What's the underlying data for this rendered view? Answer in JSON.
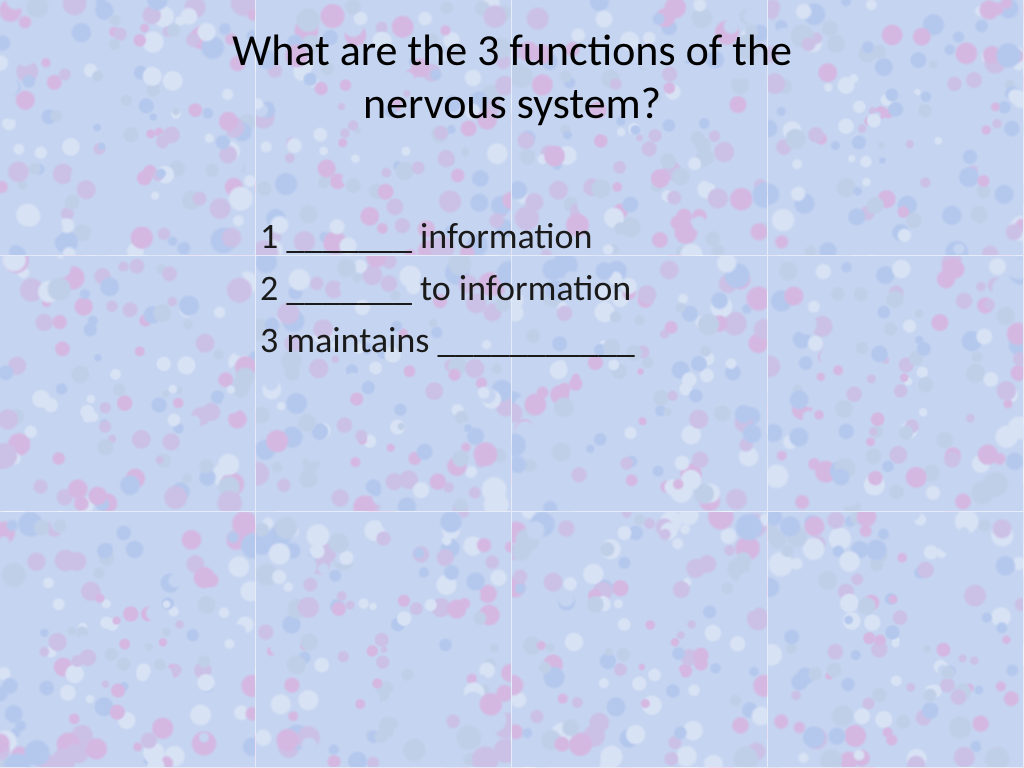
{
  "slide": {
    "title": "What are the 3 functions of the\nnervous system?",
    "items": [
      "1 _______ information",
      "2 _______ to information",
      "3 maintains ___________"
    ],
    "title_fontsize": 44,
    "body_fontsize": 36,
    "text_color": "#000000",
    "background": {
      "base_color": "#c5d4f0",
      "speckle_colors": [
        "#c5d4f0",
        "#b4c8ee",
        "#d4b8e2",
        "#d8e2f5",
        "#c0cfe8",
        "#cbc0e6"
      ],
      "grid_line_color": "rgba(255,255,255,0.55)",
      "tile_size": 256,
      "cols": 4,
      "rows": 3
    }
  }
}
